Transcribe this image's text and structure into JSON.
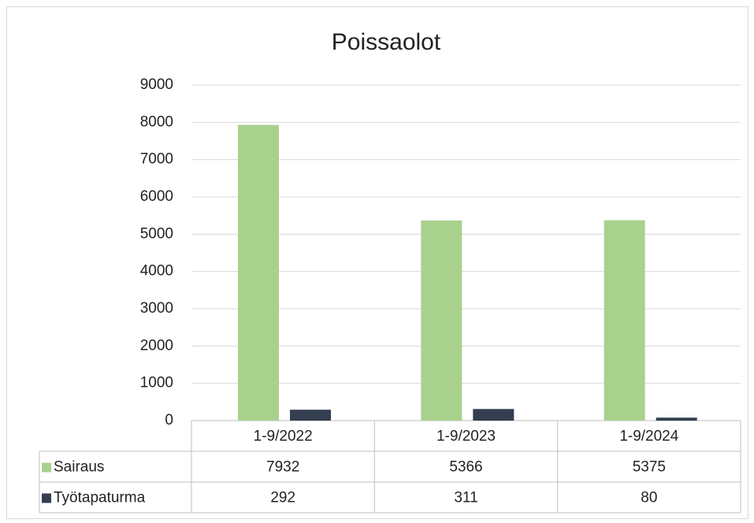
{
  "chart_data": {
    "type": "bar",
    "title": "Poissaolot",
    "categories": [
      "1-9/2022",
      "1-9/2023",
      "1-9/2024"
    ],
    "series": [
      {
        "name": "Sairaus",
        "color": "#a9d18e",
        "values": [
          7932,
          5366,
          5375
        ]
      },
      {
        "name": "Työtapaturma",
        "color": "#333f50",
        "values": [
          292,
          311,
          80
        ]
      }
    ],
    "ylim": [
      0,
      9000
    ],
    "yticks": [
      0,
      1000,
      2000,
      3000,
      4000,
      5000,
      6000,
      7000,
      8000,
      9000
    ],
    "grid": true,
    "legend": "bottom"
  }
}
